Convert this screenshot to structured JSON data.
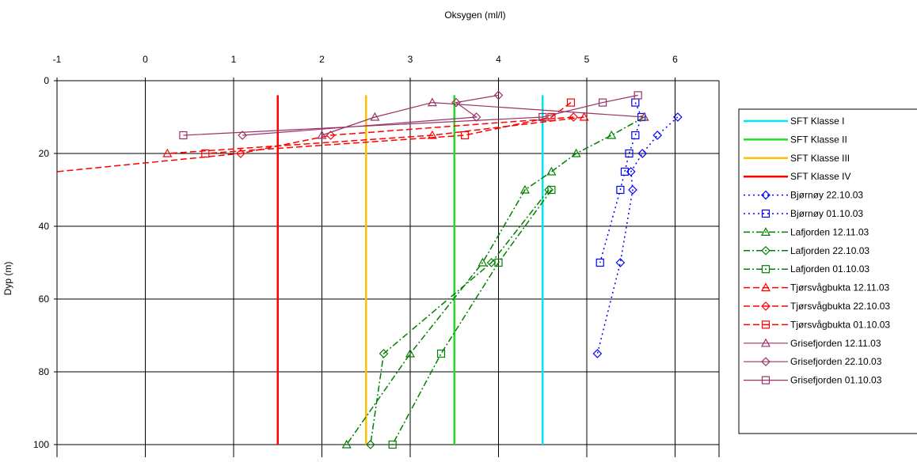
{
  "chart_data": {
    "type": "line",
    "title": "Oksygen (ml/l)",
    "xlabel": "",
    "ylabel": "Dyp (m)",
    "x_axis_position": "top",
    "y_axis_inverted": true,
    "xlim": [
      -1,
      6.5
    ],
    "ylim": [
      0,
      102
    ],
    "xticks": [
      -1,
      0,
      1,
      2,
      3,
      4,
      5,
      6
    ],
    "yticks": [
      0,
      20,
      40,
      60,
      80,
      100
    ],
    "grid": true,
    "legend_position": "right",
    "series": [
      {
        "name": "SFT Klasse I",
        "color": "#00e5ee",
        "dash": "solid",
        "marker": "none",
        "width": 2.5,
        "x": [
          4.5,
          4.5
        ],
        "y": [
          4,
          100
        ]
      },
      {
        "name": "SFT Klasse II",
        "color": "#22dd22",
        "dash": "solid",
        "marker": "none",
        "width": 2.5,
        "x": [
          3.5,
          3.5
        ],
        "y": [
          4,
          100
        ]
      },
      {
        "name": "SFT Klasse III",
        "color": "#ffc000",
        "dash": "solid",
        "marker": "none",
        "width": 2.5,
        "x": [
          2.5,
          2.5
        ],
        "y": [
          4,
          100
        ]
      },
      {
        "name": "SFT Klasse IV",
        "color": "#ff0000",
        "dash": "solid",
        "marker": "none",
        "width": 2.5,
        "x": [
          1.5,
          1.5
        ],
        "y": [
          4,
          100
        ]
      },
      {
        "name": "Bjørnøy 22.10.03",
        "color": "#0000ff",
        "dash": "dot",
        "marker": "diamond",
        "width": 1.5,
        "x": [
          6.03,
          5.8,
          5.63,
          5.5,
          5.52,
          5.38,
          5.12
        ],
        "y": [
          10,
          15,
          20,
          25,
          30,
          50,
          75
        ]
      },
      {
        "name": "Bjørnøy 01.10.03",
        "color": "#0000ff",
        "dash": "dot",
        "marker": "square",
        "width": 1.5,
        "x": [
          5.55,
          5.62,
          5.55,
          5.48,
          5.43,
          5.38,
          5.15
        ],
        "y": [
          6,
          10,
          15,
          20,
          25,
          30,
          50
        ]
      },
      {
        "name": "Lafjorden 12.11.03",
        "color": "#008000",
        "dash": "dashdot",
        "marker": "triangle",
        "width": 1.5,
        "x": [
          5.65,
          5.28,
          4.88,
          4.6,
          4.3,
          3.82,
          3.0,
          2.28
        ],
        "y": [
          10,
          15,
          20,
          25,
          30,
          50,
          75,
          100
        ]
      },
      {
        "name": "Lafjorden 22.10.03",
        "color": "#008000",
        "dash": "dashdot",
        "marker": "diamond",
        "width": 1.5,
        "x": [
          4.57,
          3.92,
          2.7,
          2.55
        ],
        "y": [
          30,
          50,
          75,
          100
        ]
      },
      {
        "name": "Lafjorden 01.10.03",
        "color": "#008000",
        "dash": "dashdot",
        "marker": "square",
        "width": 1.5,
        "x": [
          4.6,
          4.0,
          3.35,
          2.8
        ],
        "y": [
          30,
          50,
          75,
          100
        ]
      },
      {
        "name": "Tjørsvågbukta 12.11.03",
        "color": "#ff0000",
        "dash": "dash",
        "marker": "triangle",
        "width": 1.5,
        "x": [
          4.97,
          3.25,
          0.25
        ],
        "y": [
          10,
          15,
          20
        ]
      },
      {
        "name": "Tjørsvågbukta 22.10.03",
        "color": "#ff0000",
        "dash": "dash",
        "marker": "diamond",
        "width": 1.5,
        "x": [
          4.85,
          2.1,
          1.08,
          -1.0
        ],
        "y": [
          10,
          15,
          20,
          25
        ]
      },
      {
        "name": "Tjørsvågbukta 01.10.03",
        "color": "#ff0000",
        "dash": "dash",
        "marker": "square",
        "width": 1.5,
        "x": [
          4.82,
          4.6,
          3.62,
          0.68
        ],
        "y": [
          6,
          10,
          15,
          20
        ]
      },
      {
        "name": "Grisefjorden 12.11.03",
        "color": "#993366",
        "dash": "solid",
        "marker": "triangle",
        "width": 1.2,
        "x": [
          5.65,
          3.25,
          2.6,
          2.0
        ],
        "y": [
          10,
          6,
          10,
          15
        ]
      },
      {
        "name": "Grisefjorden 22.10.03",
        "color": "#993366",
        "dash": "solid",
        "marker": "diamond",
        "width": 1.2,
        "x": [
          4.0,
          3.52,
          3.75,
          1.1
        ],
        "y": [
          4,
          6,
          10,
          15
        ]
      },
      {
        "name": "Grisefjorden 01.10.03",
        "color": "#993366",
        "dash": "solid",
        "marker": "square",
        "width": 1.2,
        "x": [
          5.58,
          5.18,
          4.5,
          0.43
        ],
        "y": [
          4,
          6,
          10,
          15
        ]
      }
    ]
  }
}
